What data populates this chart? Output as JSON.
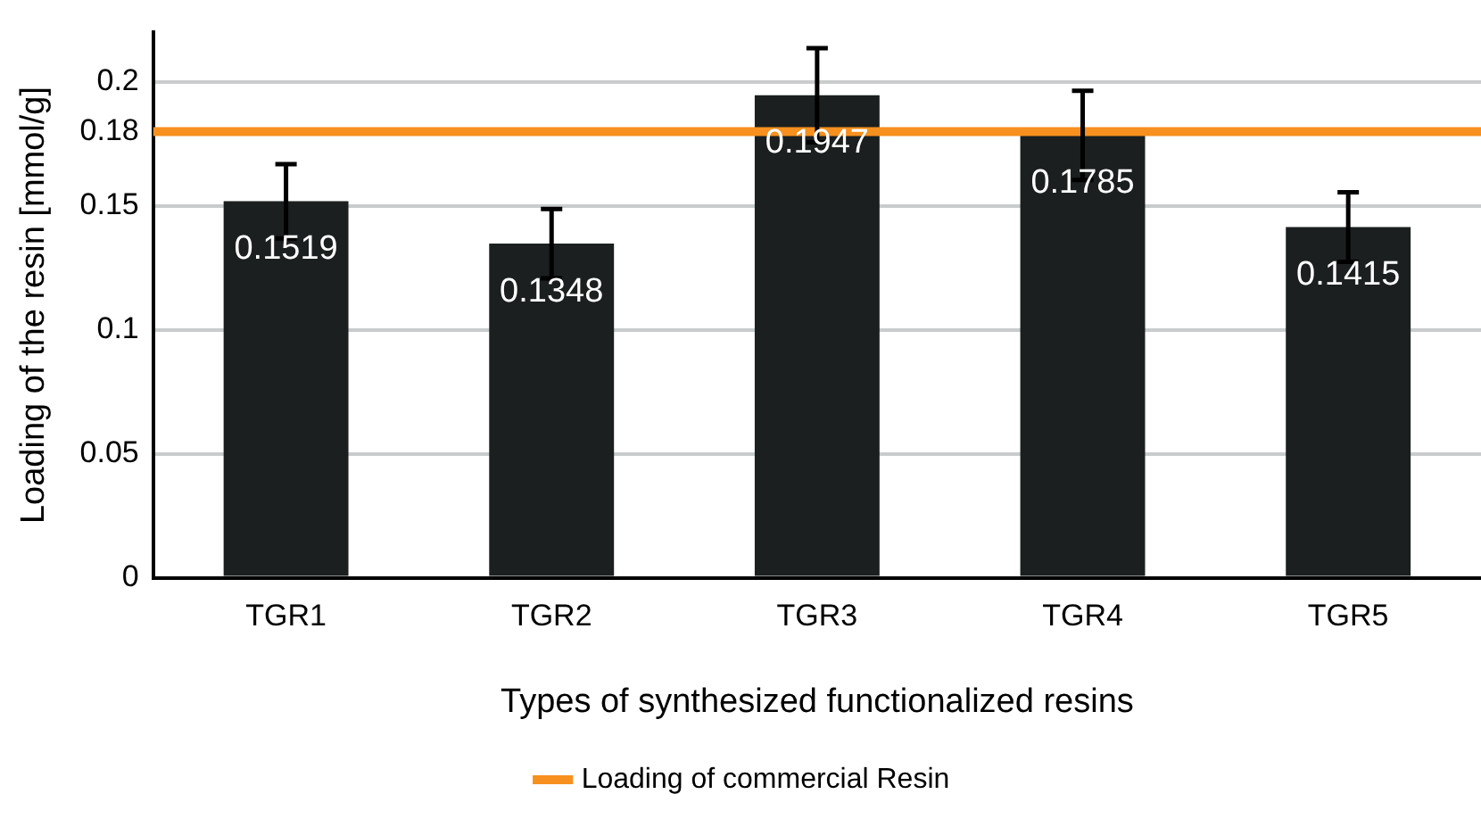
{
  "chart_data": {
    "type": "bar",
    "xlabel": "Types of synthesized functionalized resins",
    "ylabel": "Loading of the resin [mmol/g]",
    "categories": [
      "TGR1",
      "TGR2",
      "TGR3",
      "TGR4",
      "TGR5"
    ],
    "values": [
      0.1519,
      0.1348,
      0.1947,
      0.1785,
      0.1415
    ],
    "errors": [
      0.015,
      0.014,
      0.019,
      0.018,
      0.014
    ],
    "color": "#1b1f1f",
    "data_labels": true,
    "ylim": [
      0,
      0.22
    ],
    "yticks": [
      0,
      0.05,
      0.1,
      0.15,
      0.18,
      0.2
    ],
    "grid": "y",
    "ref_lines": [
      {
        "axis": "y",
        "value": 0.18,
        "label": "Loading of commercial Resin",
        "color": "#f7901e"
      }
    ],
    "legend": "bottom"
  }
}
